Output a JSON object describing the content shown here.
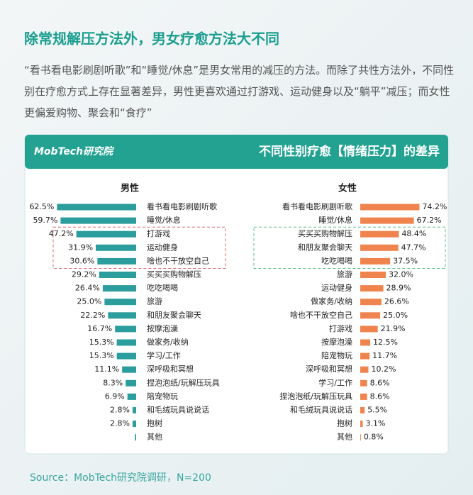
{
  "headline": "除常规解压方法外，男女疗愈方法大不同",
  "paragraph": "“看书看电影刷剧听歌”和“睡觉/休息”是男女常用的减压的方法。而除了共性方法外，不同性别在疗愈方式上存在显著差异，男性更喜欢通过打游戏、运动健身以及“躺平”减压；而女性更偏爱购物、聚会和“食疗”",
  "brand": "MobTech研究院",
  "panel_title": "不同性别疗愈【情绪压力】的差异",
  "source": "Source：MobTech研究院调研，N=200",
  "chart_data": [
    {
      "type": "bar",
      "title": "男性",
      "bar_direction": "left",
      "color": "#2a9d9c",
      "xlim": [
        0,
        70
      ],
      "categories": [
        "看书看电影刷剧听歌",
        "睡觉/休息",
        "打游戏",
        "运动健身",
        "啥也不干放空自己",
        "买买买购物解压",
        "吃吃喝喝",
        "旅游",
        "和朋友聚会聊天",
        "按摩泡澡",
        "做家务/收纳",
        "学习/工作",
        "深呼吸和冥想",
        "捏泡泡纸/玩解压玩具",
        "陪宠物玩",
        "和毛绒玩具说说话",
        "抱树",
        "其他"
      ],
      "values": [
        62.5,
        59.7,
        47.2,
        31.9,
        30.6,
        29.2,
        26.4,
        25.0,
        22.2,
        16.7,
        15.3,
        15.3,
        11.1,
        8.3,
        6.9,
        2.8,
        2.8,
        1.0
      ],
      "value_labels": [
        "62.5%",
        "59.7%",
        "47.2%",
        "31.9%",
        "30.6%",
        "29.2%",
        "26.4%",
        "25.0%",
        "22.2%",
        "16.7%",
        "15.3%",
        "15.3%",
        "11.1%",
        "8.3%",
        "6.9%",
        "2.8%",
        "2.8%",
        null
      ]
    },
    {
      "type": "bar",
      "title": "女性",
      "bar_direction": "right",
      "color": "#f0844e",
      "xlim": [
        0,
        80
      ],
      "categories": [
        "看书看电影刷剧听歌",
        "睡觉/休息",
        "买买买购物解压",
        "和朋友聚会聊天",
        "吃吃喝喝",
        "旅游",
        "运动健身",
        "做家务/收纳",
        "啥也不干放空自己",
        "打游戏",
        "按摩泡澡",
        "陪宠物玩",
        "深呼吸和冥想",
        "学习/工作",
        "捏泡泡纸/玩解压玩具",
        "和毛绒玩具说说话",
        "抱树",
        "其他"
      ],
      "values": [
        74.2,
        67.2,
        48.4,
        47.7,
        37.5,
        32.0,
        28.9,
        26.6,
        25.0,
        21.9,
        12.5,
        11.7,
        10.2,
        8.6,
        8.6,
        5.5,
        3.1,
        0.8
      ],
      "value_labels": [
        "74.2%",
        "67.2%",
        "48.4%",
        "47.7%",
        "37.5%",
        "32.0%",
        "28.9%",
        "26.6%",
        "25.0%",
        "21.9%",
        "12.5%",
        "11.7%",
        "10.2%",
        "8.6%",
        "8.6%",
        "5.5%",
        "3.1%",
        "0.8%"
      ]
    }
  ]
}
